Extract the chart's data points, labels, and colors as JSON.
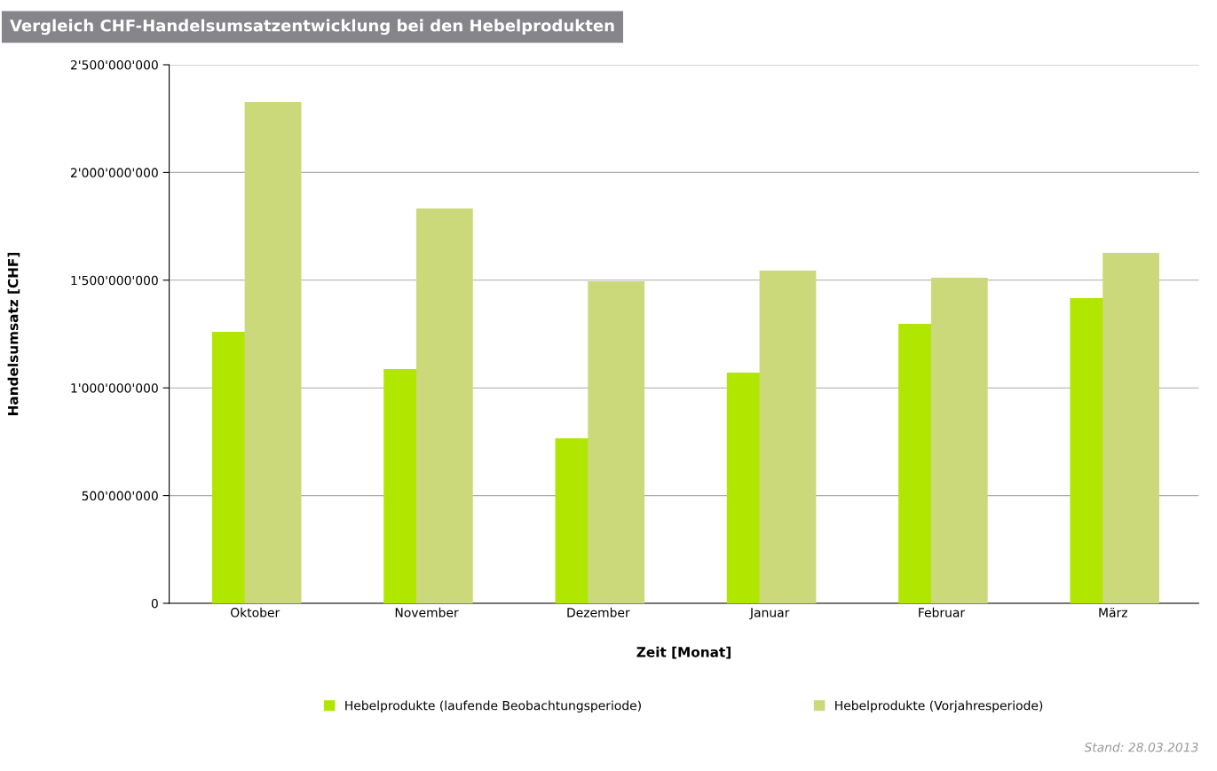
{
  "chart_data": {
    "type": "bar",
    "title": "Vergleich CHF-Handelsumsatzentwicklung bei den Hebelprodukten",
    "xlabel": "Zeit [Monat]",
    "ylabel": "Handelsumsatz [CHF]",
    "categories": [
      "Oktober",
      "November",
      "Dezember",
      "Januar",
      "Februar",
      "März"
    ],
    "series": [
      {
        "name": "Hebelprodukte (laufende Beobachtungsperiode)",
        "color": "#b0e600",
        "values": [
          1260000000,
          1087000000,
          766000000,
          1071000000,
          1297000000,
          1417000000
        ]
      },
      {
        "name": "Hebelprodukte (Vorjahresperiode)",
        "color": "#ccd97a",
        "values": [
          2327000000,
          1833000000,
          1495000000,
          1544000000,
          1512000000,
          1627000000
        ]
      }
    ],
    "ylim": [
      0,
      2500000000
    ],
    "yticks": [
      0,
      {
        "value": 500000000,
        "label": "500'000'000"
      },
      {
        "value": 1000000000,
        "label": "1'000'000'000"
      },
      {
        "value": 1500000000,
        "label": "1'500'000'000"
      },
      {
        "value": 2000000000,
        "label": "2'000'000'000"
      },
      {
        "value": 2500000000,
        "label": "2'500'000'000"
      }
    ],
    "grid": "y",
    "legend": "bottom",
    "annotations": [
      "Stand: 28.03.2013"
    ]
  }
}
